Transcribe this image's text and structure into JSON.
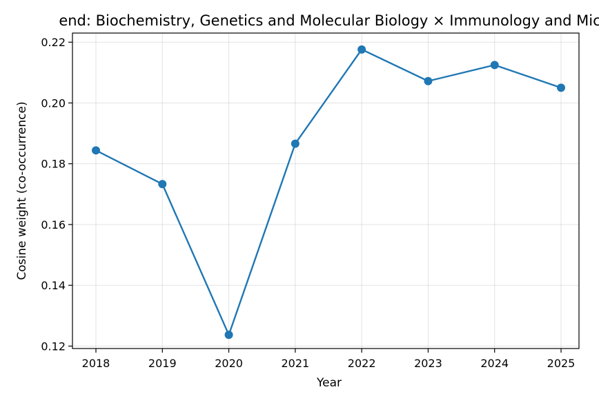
{
  "chart_data": {
    "type": "line",
    "title": "end: Biochemistry, Genetics and Molecular Biology × Immunology and Mic",
    "xlabel": "Year",
    "ylabel": "Cosine weight (co-occurrence)",
    "x": [
      "2018",
      "2019",
      "2020",
      "2021",
      "2022",
      "2023",
      "2024",
      "2025"
    ],
    "series": [
      {
        "values": [
          0.1844,
          0.1733,
          0.1237,
          0.1866,
          0.2176,
          0.2072,
          0.2125,
          0.205
        ]
      }
    ],
    "yticks": [
      "0.12",
      "0.14",
      "0.16",
      "0.18",
      "0.20",
      "0.22"
    ],
    "ylim": [
      0.1192,
      0.223
    ],
    "grid": true,
    "color": "#1f77b4"
  }
}
